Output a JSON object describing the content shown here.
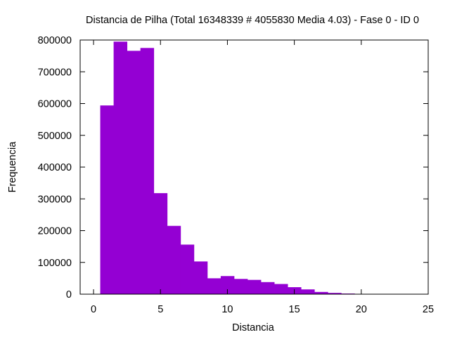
{
  "chart_data": {
    "type": "bar",
    "title": "Distancia de Pilha (Total 16348339 # 4055830 Media 4.03) - Fase  0 - ID 0",
    "xlabel": "Distancia",
    "ylabel": "Frequencia",
    "xlim": [
      -1,
      25
    ],
    "ylim": [
      0,
      800000
    ],
    "xticks": [
      0,
      5,
      10,
      15,
      20,
      25
    ],
    "yticks": [
      0,
      100000,
      200000,
      300000,
      400000,
      500000,
      600000,
      700000,
      800000
    ],
    "grid": false,
    "legend": "none",
    "bar_color": "#9400d3",
    "bins": [
      {
        "x": 1,
        "value": 594000
      },
      {
        "x": 2,
        "value": 795000
      },
      {
        "x": 3,
        "value": 766000
      },
      {
        "x": 4,
        "value": 775000
      },
      {
        "x": 5,
        "value": 318000
      },
      {
        "x": 6,
        "value": 215000
      },
      {
        "x": 7,
        "value": 156000
      },
      {
        "x": 8,
        "value": 103000
      },
      {
        "x": 9,
        "value": 50000
      },
      {
        "x": 10,
        "value": 57000
      },
      {
        "x": 11,
        "value": 48000
      },
      {
        "x": 12,
        "value": 45000
      },
      {
        "x": 13,
        "value": 38000
      },
      {
        "x": 14,
        "value": 32000
      },
      {
        "x": 15,
        "value": 22000
      },
      {
        "x": 16,
        "value": 15000
      },
      {
        "x": 17,
        "value": 7000
      },
      {
        "x": 18,
        "value": 4000
      },
      {
        "x": 19,
        "value": 2000
      },
      {
        "x": 20,
        "value": 500
      }
    ]
  }
}
